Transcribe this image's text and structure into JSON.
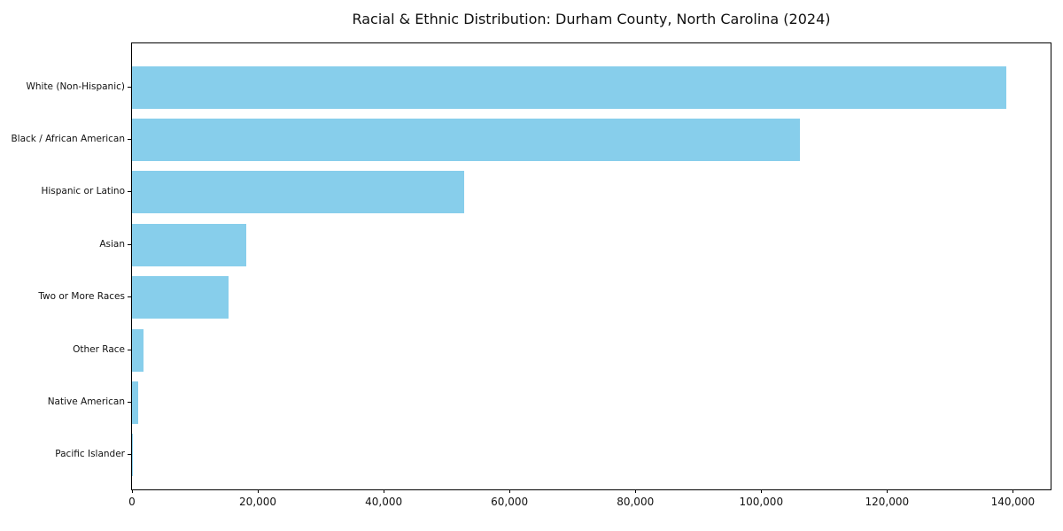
{
  "title": "Racial & Ethnic Distribution: Durham County, North Carolina (2024)",
  "chart_data": {
    "type": "bar",
    "orientation": "horizontal",
    "title": "Racial & Ethnic Distribution: Durham County, North Carolina (2024)",
    "categories": [
      "White (Non-Hispanic)",
      "Black / African American",
      "Hispanic or Latino",
      "Asian",
      "Two or More Races",
      "Other Race",
      "Native American",
      "Pacific Islander"
    ],
    "values": [
      139000,
      106200,
      52800,
      18100,
      15300,
      1800,
      950,
      100
    ],
    "categories_order": "top-to-bottom",
    "xlabel": "",
    "ylabel": "",
    "xlim": [
      0,
      146000
    ],
    "xticks": [
      0,
      20000,
      40000,
      60000,
      80000,
      100000,
      120000,
      140000
    ],
    "xtick_labels": [
      "0",
      "20,000",
      "40,000",
      "60,000",
      "80,000",
      "100,000",
      "120,000",
      "140,000"
    ],
    "bar_color": "#87CEEB",
    "grid": false,
    "legend": false
  },
  "colors": {
    "bar": "#87CEEB",
    "axis": "#000000",
    "text": "#111111",
    "background": "#ffffff"
  }
}
